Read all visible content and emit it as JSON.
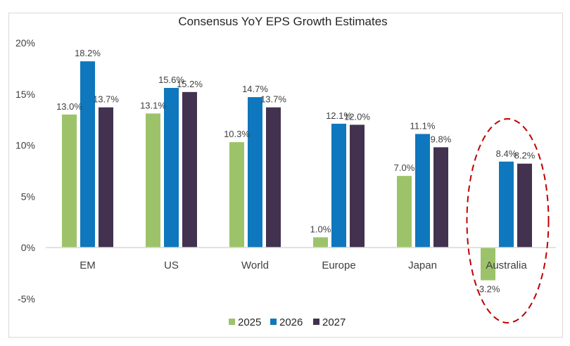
{
  "chart_data": {
    "type": "bar",
    "title": "Consensus YoY EPS Growth Estimates",
    "xlabel": "",
    "ylabel": "",
    "ylim": [
      -5,
      20
    ],
    "yticks": [
      -5,
      0,
      5,
      10,
      15,
      20
    ],
    "ytick_labels": [
      "-5%",
      "0%",
      "5%",
      "10%",
      "15%",
      "20%"
    ],
    "grid": false,
    "legend_position": "bottom",
    "categories": [
      "EM",
      "US",
      "World",
      "Europe",
      "Japan",
      "Australia"
    ],
    "series": [
      {
        "name": "2025",
        "color": "#9dc36a",
        "values": [
          13.0,
          13.1,
          10.3,
          1.0,
          7.0,
          -3.2
        ],
        "labels": [
          "13.0%",
          "13.1%",
          "10.3%",
          "1.0%",
          "7.0%",
          "-3.2%"
        ]
      },
      {
        "name": "2026",
        "color": "#0e77bd",
        "values": [
          18.2,
          15.6,
          14.7,
          12.1,
          11.1,
          8.4
        ],
        "labels": [
          "18.2%",
          "15.6%",
          "14.7%",
          "12.1%",
          "11.1%",
          "8.4%"
        ]
      },
      {
        "name": "2027",
        "color": "#42324f",
        "values": [
          13.7,
          15.2,
          13.7,
          12.0,
          9.8,
          8.2
        ],
        "labels": [
          "13.7%",
          "15.2%",
          "13.7%",
          "12.0%",
          "9.8%",
          "8.2%"
        ]
      }
    ],
    "annotations": [
      {
        "type": "dashed-ellipse",
        "target_category": "Australia",
        "color": "#c00000"
      }
    ]
  }
}
